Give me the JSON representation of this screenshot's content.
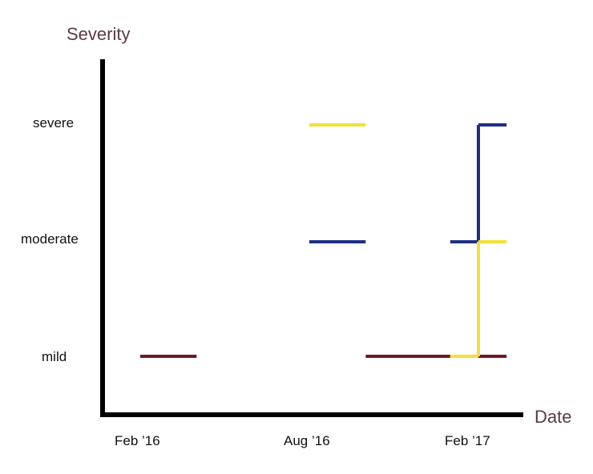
{
  "chart_data": {
    "type": "line",
    "title": "",
    "xlabel": "Date",
    "ylabel": "Severity",
    "x_ticks": [
      "Feb ’16",
      "Aug ’16",
      "Feb ’17"
    ],
    "y_ticks": [
      "mild",
      "moderate",
      "severe"
    ],
    "y_scale": "ordinal",
    "grid": false,
    "legend": "none",
    "series": [
      {
        "color": "#6e1a22",
        "steps": [
          {
            "x_start": "2016-02",
            "x_end": "2016-04",
            "y": "mild"
          },
          {
            "x_start": "2016-10",
            "x_end": "2017-01",
            "y": "mild"
          },
          {
            "x_start": "2017-02",
            "x_end": "2017-03",
            "y": "mild"
          }
        ]
      },
      {
        "color": "#1c2f86",
        "steps": [
          {
            "x_start": "2016-08",
            "x_end": "2016-10",
            "y": "moderate"
          },
          {
            "x_start": "2017-01",
            "x_end": "2017-02",
            "y": "moderate"
          },
          {
            "x_start": "2017-02",
            "x_end": "2017-03",
            "y": "severe"
          }
        ]
      },
      {
        "color": "#f3df3a",
        "steps": [
          {
            "x_start": "2016-08",
            "x_end": "2016-10",
            "y": "severe"
          },
          {
            "x_start": "2017-01",
            "x_end": "2017-02",
            "y": "mild"
          },
          {
            "x_start": "2017-02",
            "x_end": "2017-03",
            "y": "moderate"
          }
        ]
      }
    ]
  }
}
